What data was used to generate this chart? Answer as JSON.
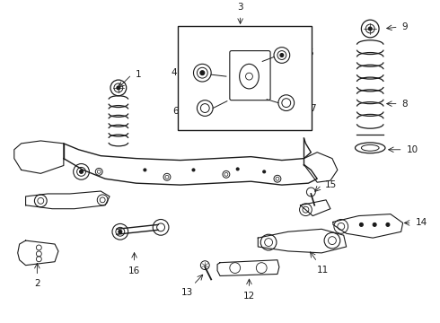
{
  "bg_color": "#ffffff",
  "line_color": "#1a1a1a"
}
